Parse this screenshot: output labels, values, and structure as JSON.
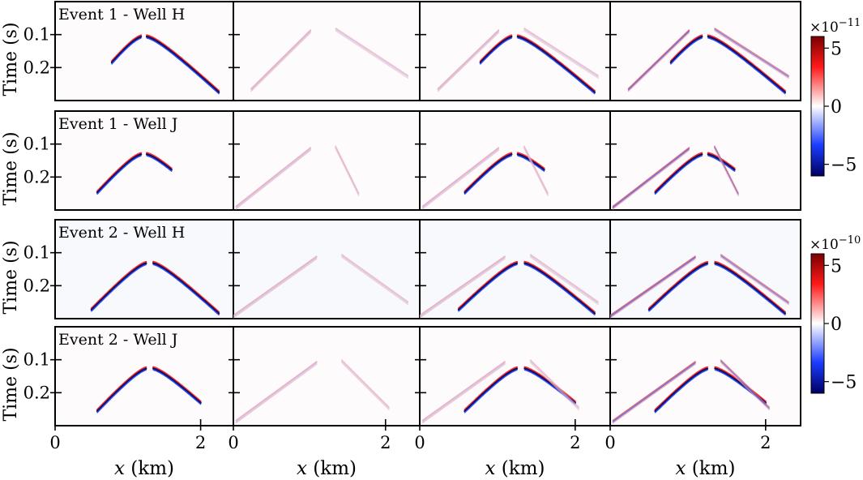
{
  "chart_data": {
    "type": "seismic-gather-grid",
    "rows": [
      {
        "label": "Event 1 - Well H",
        "colorbar_group": 0
      },
      {
        "label": "Event 1 - Well J",
        "colorbar_group": 0
      },
      {
        "label": "Event 2 - Well H",
        "colorbar_group": 1
      },
      {
        "label": "Event 2 - Well J",
        "colorbar_group": 1
      }
    ],
    "columns": 4,
    "xlabel": "x (km)",
    "ylabel": "Time (s)",
    "x_ticks": [
      0,
      2
    ],
    "y_ticks": [
      0.1,
      0.2
    ],
    "xlim": [
      0,
      2.45
    ],
    "ylim": [
      0.3,
      0.0
    ],
    "colorbars": [
      {
        "exponent_label": "×10",
        "exponent": "−11",
        "ticks": [
          "5",
          "0",
          "−5"
        ],
        "range": [
          -6,
          6
        ]
      },
      {
        "exponent_label": "×10",
        "exponent": "−10",
        "ticks": [
          "5",
          "0",
          "−5"
        ],
        "range": [
          -6,
          6
        ]
      }
    ],
    "colormap": {
      "low": "#000080",
      "mid_low": "#1f3fff",
      "mid": "#ffffff",
      "mid_high": "#ff2020",
      "high": "#7a0000"
    },
    "events": [
      {
        "row": 0,
        "apex_x": 1.22,
        "apex_t": 0.105,
        "slope_left": 0.285,
        "slope_right": 0.205,
        "left_end": 0.78,
        "right_end": 2.25,
        "gap": 0.08,
        "ghost_offset": 0.0
      },
      {
        "row": 1,
        "apex_x": 1.22,
        "apex_t": 0.13,
        "slope_left": 0.255,
        "slope_right": 0.21,
        "left_end": 0.58,
        "right_end": 1.6,
        "gap": 0.08,
        "ghost_offset": 0.0
      },
      {
        "row": 2,
        "apex_x": 1.3,
        "apex_t": 0.13,
        "slope_left": 0.235,
        "slope_right": 0.205,
        "left_end": 0.5,
        "right_end": 2.25,
        "gap": 0.1,
        "ghost_offset": 0.0
      },
      {
        "row": 3,
        "apex_x": 1.3,
        "apex_t": 0.125,
        "slope_left": 0.245,
        "slope_right": 0.205,
        "left_end": 0.58,
        "right_end": 2.0,
        "gap": 0.1,
        "ghost_offset": 0.0
      }
    ]
  }
}
